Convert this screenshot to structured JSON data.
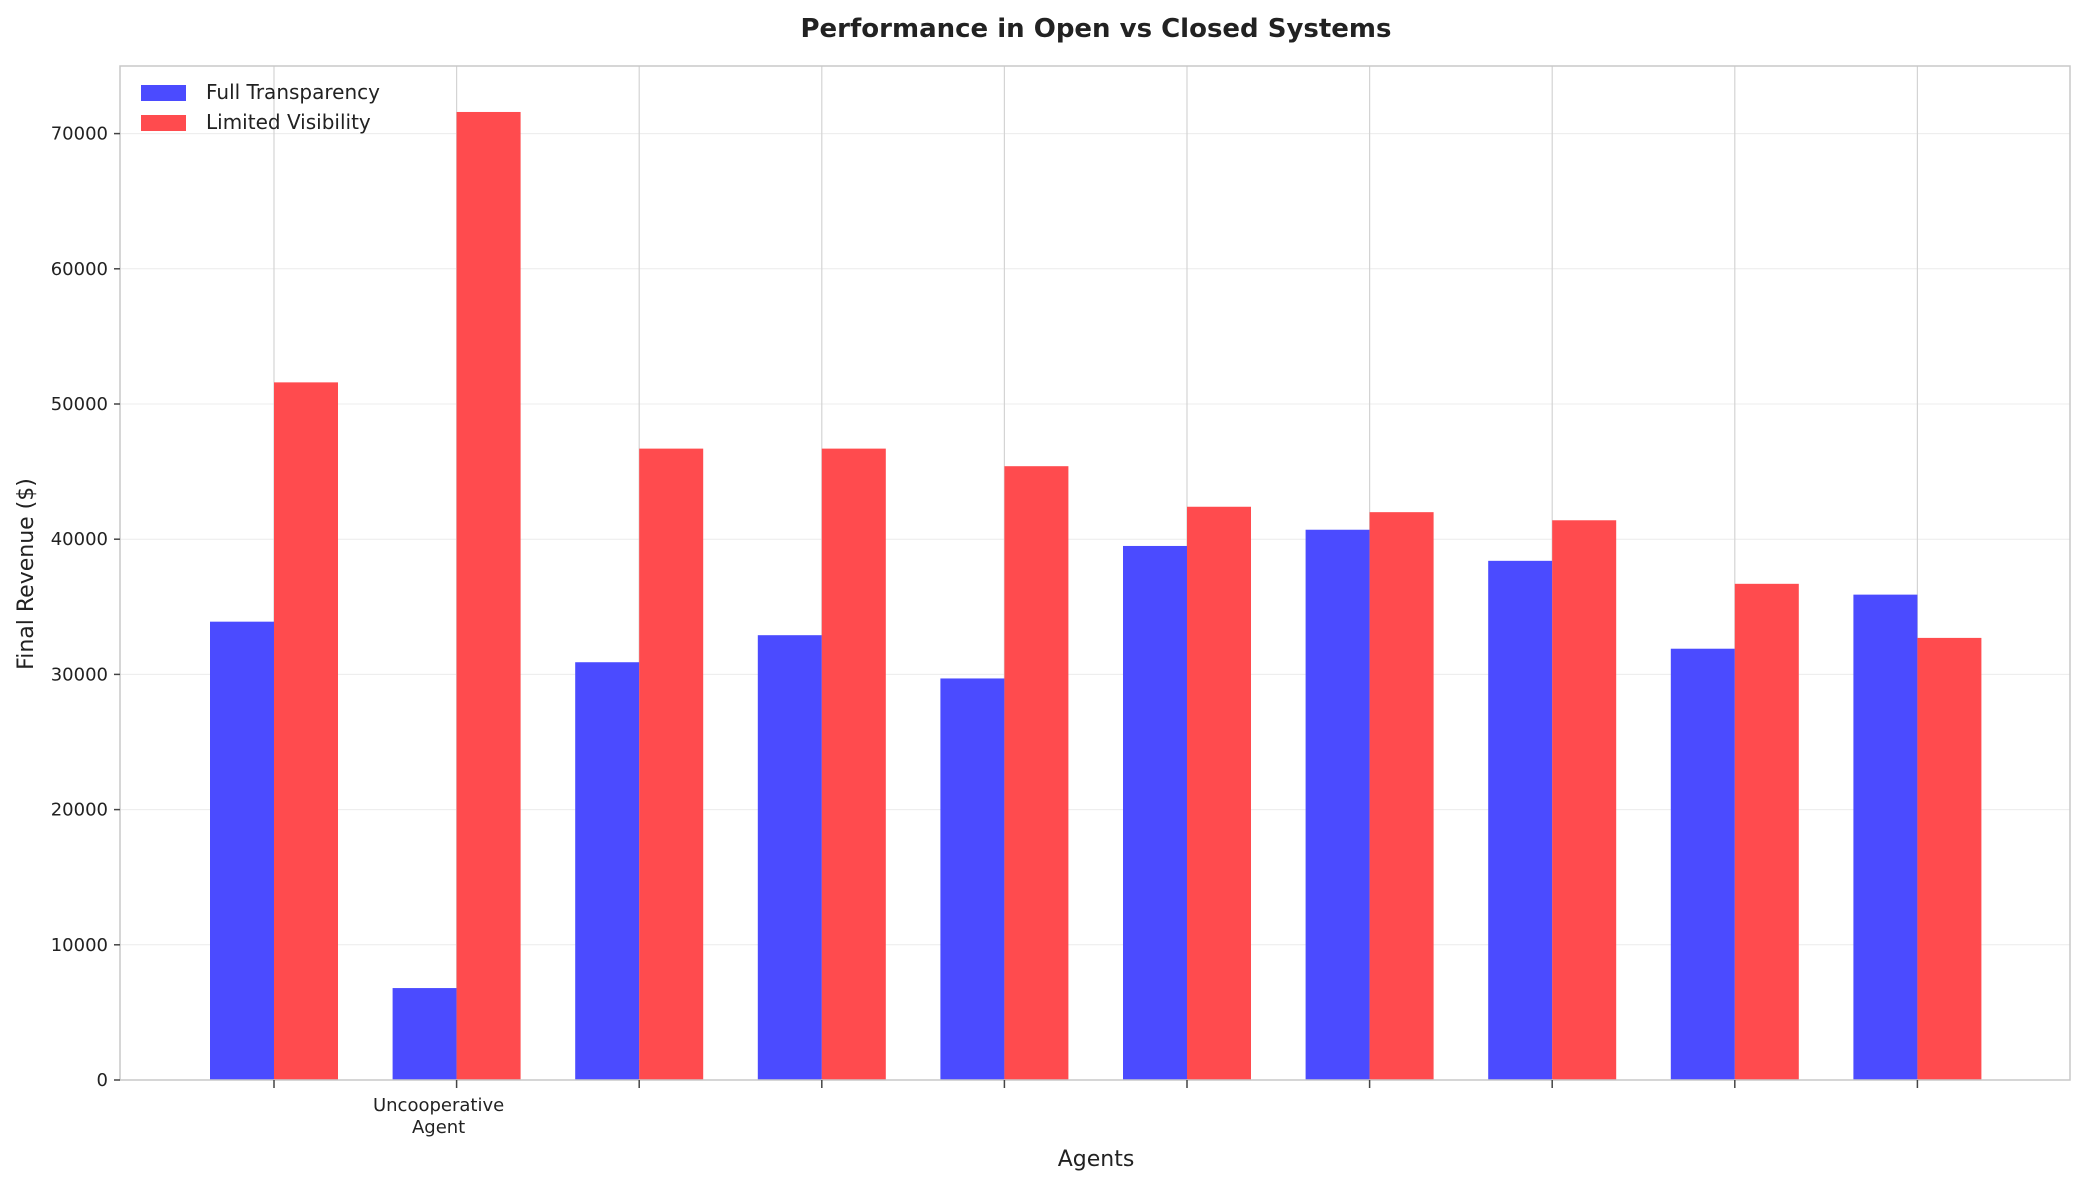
{
  "chart_data": {
    "type": "bar",
    "title": "Performance in Open vs Closed Systems",
    "xlabel": "Agents",
    "ylabel": "Final Revenue ($)",
    "categories": [
      "",
      "Uncooperative\nAgent",
      "",
      "",
      "",
      "",
      "",
      "",
      "",
      ""
    ],
    "ylim": [
      0,
      75000
    ],
    "yticks": [
      0,
      10000,
      20000,
      30000,
      40000,
      50000,
      60000,
      70000
    ],
    "grid": true,
    "legend_position": "top-left",
    "series": [
      {
        "name": "Full Transparency",
        "color": "#4b4bff",
        "values": [
          33900,
          6800,
          30900,
          32900,
          29700,
          39500,
          40700,
          38400,
          31900,
          35900
        ]
      },
      {
        "name": "Limited Visibility",
        "color": "#ff4b4e",
        "values": [
          51600,
          71600,
          46700,
          46700,
          45400,
          42400,
          42000,
          41400,
          36700,
          32700
        ]
      }
    ]
  }
}
